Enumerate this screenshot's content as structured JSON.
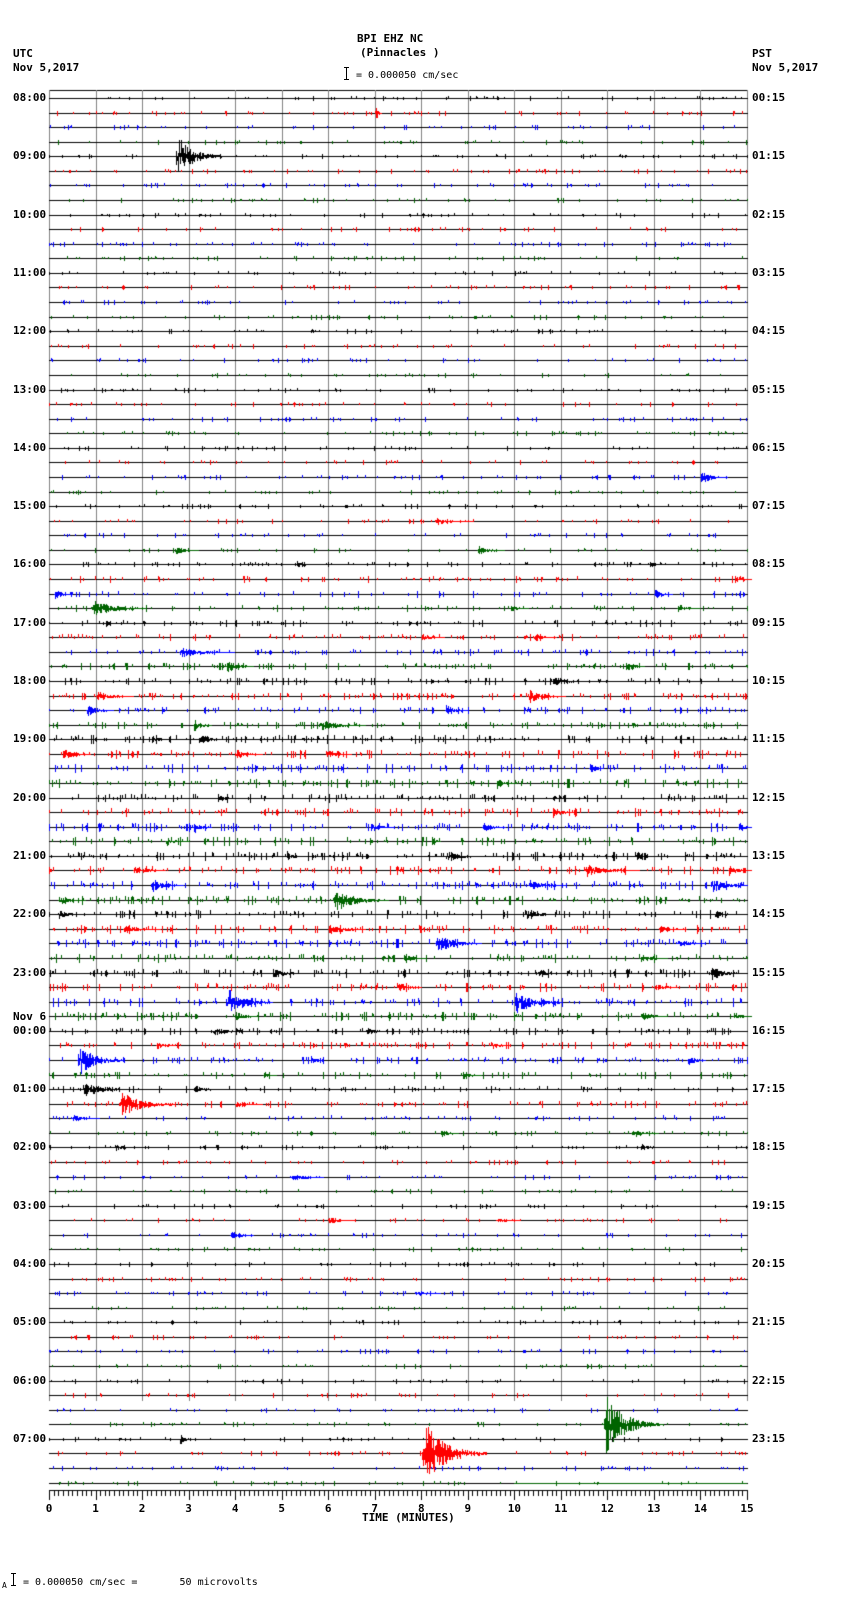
{
  "header": {
    "station": "BPI EHZ NC",
    "location": "(Pinnacles )",
    "scale_text": "= 0.000050 cm/sec",
    "left_tz": "UTC",
    "left_date": "Nov 5,2017",
    "right_tz": "PST",
    "right_date": "Nov 5,2017"
  },
  "footer": {
    "scale_text": "= 0.000050 cm/sec =       50 microvolts",
    "prefix": "A"
  },
  "chart_data": {
    "type": "line",
    "title": "BPI EHZ NC (Pinnacles ) helicorder",
    "xlabel": "TIME (MINUTES)",
    "ylabel": "",
    "xlim": [
      0,
      15
    ],
    "x_ticks": [
      "0",
      "1",
      "2",
      "3",
      "4",
      "5",
      "6",
      "7",
      "8",
      "9",
      "10",
      "11",
      "12",
      "13",
      "14",
      "15"
    ],
    "grid": true,
    "trace_colors": [
      "#000000",
      "#ff0000",
      "#0000ff",
      "#006400"
    ],
    "trace_count": 96,
    "minutes_per_trace": 15,
    "left_labels": [
      "08:00",
      "09:00",
      "10:00",
      "11:00",
      "12:00",
      "13:00",
      "14:00",
      "15:00",
      "16:00",
      "17:00",
      "18:00",
      "19:00",
      "20:00",
      "21:00",
      "22:00",
      "23:00",
      "00:00",
      "01:00",
      "02:00",
      "03:00",
      "04:00",
      "05:00",
      "06:00",
      "07:00"
    ],
    "date_change_label": "Nov 6",
    "date_change_index": 16,
    "right_labels": [
      "00:15",
      "01:15",
      "02:15",
      "03:15",
      "04:15",
      "05:15",
      "06:15",
      "07:15",
      "08:15",
      "09:15",
      "10:15",
      "11:15",
      "12:15",
      "13:15",
      "14:15",
      "15:15",
      "16:15",
      "17:15",
      "18:15",
      "19:15",
      "20:15",
      "21:15",
      "22:15",
      "23:15"
    ],
    "noise_levels": [
      1,
      1,
      1,
      1,
      1,
      1,
      1,
      1,
      1,
      1,
      1,
      1,
      1,
      1,
      1,
      1,
      1,
      1,
      1,
      1,
      1,
      1,
      1,
      1,
      1,
      1,
      1,
      1,
      1,
      1,
      1,
      1,
      1.3,
      1.5,
      1.5,
      1.5,
      1.6,
      1.8,
      1.8,
      2,
      2,
      2,
      2,
      2,
      2.2,
      2.4,
      2.4,
      2.4,
      2.4,
      2.4,
      2.4,
      2.4,
      2.4,
      2.4,
      2.4,
      2.4,
      2.4,
      2.4,
      2.4,
      2.4,
      2.4,
      2.4,
      2.4,
      2.4,
      2,
      2,
      2,
      2,
      1.6,
      1.6,
      1.4,
      1.2,
      1,
      1,
      1,
      1,
      1,
      1,
      1,
      1,
      1,
      1,
      1,
      1,
      1,
      1,
      1,
      1,
      1,
      1,
      1,
      1,
      1,
      1,
      1,
      1
    ],
    "events": [
      {
        "trace": 0,
        "minute": 9.6,
        "amp": 3,
        "dur": 0.2
      },
      {
        "trace": 1,
        "minute": 7.0,
        "amp": 10,
        "dur": 0.15
      },
      {
        "trace": 4,
        "minute": 2.7,
        "amp": 28,
        "dur": 1.0
      },
      {
        "trace": 16,
        "minute": 5.6,
        "amp": 3,
        "dur": 0.3
      },
      {
        "trace": 26,
        "minute": 14.0,
        "amp": 8,
        "dur": 0.6
      },
      {
        "trace": 29,
        "minute": 8.3,
        "amp": 4,
        "dur": 0.8
      },
      {
        "trace": 31,
        "minute": 2.7,
        "amp": 5,
        "dur": 0.5
      },
      {
        "trace": 31,
        "minute": 9.2,
        "amp": 5,
        "dur": 0.6
      },
      {
        "trace": 32,
        "minute": 5.3,
        "amp": 5,
        "dur": 0.3
      },
      {
        "trace": 32,
        "minute": 12.9,
        "amp": 4,
        "dur": 0.3
      },
      {
        "trace": 33,
        "minute": 14.8,
        "amp": 7,
        "dur": 0.3
      },
      {
        "trace": 34,
        "minute": 0.1,
        "amp": 8,
        "dur": 0.4
      },
      {
        "trace": 34,
        "minute": 13.0,
        "amp": 6,
        "dur": 0.4
      },
      {
        "trace": 35,
        "minute": 0.9,
        "amp": 10,
        "dur": 1.2
      },
      {
        "trace": 35,
        "minute": 9.9,
        "amp": 5,
        "dur": 0.4
      },
      {
        "trace": 35,
        "minute": 13.5,
        "amp": 5,
        "dur": 0.5
      },
      {
        "trace": 36,
        "minute": 1.2,
        "amp": 5,
        "dur": 0.2
      },
      {
        "trace": 37,
        "minute": 8.0,
        "amp": 5,
        "dur": 0.5
      },
      {
        "trace": 37,
        "minute": 10.4,
        "amp": 5,
        "dur": 0.5
      },
      {
        "trace": 38,
        "minute": 2.8,
        "amp": 6,
        "dur": 1.2
      },
      {
        "trace": 39,
        "minute": 3.8,
        "amp": 8,
        "dur": 0.6
      },
      {
        "trace": 39,
        "minute": 12.4,
        "amp": 8,
        "dur": 0.4
      },
      {
        "trace": 40,
        "minute": 10.8,
        "amp": 6,
        "dur": 0.8
      },
      {
        "trace": 41,
        "minute": 1.0,
        "amp": 6,
        "dur": 0.8
      },
      {
        "trace": 41,
        "minute": 10.3,
        "amp": 10,
        "dur": 0.8
      },
      {
        "trace": 42,
        "minute": 0.8,
        "amp": 7,
        "dur": 0.6
      },
      {
        "trace": 42,
        "minute": 8.5,
        "amp": 7,
        "dur": 0.5
      },
      {
        "trace": 43,
        "minute": 3.1,
        "amp": 9,
        "dur": 0.4
      },
      {
        "trace": 43,
        "minute": 5.8,
        "amp": 7,
        "dur": 1.0
      },
      {
        "trace": 44,
        "minute": 3.2,
        "amp": 8,
        "dur": 0.6
      },
      {
        "trace": 44,
        "minute": 2.2,
        "amp": 5,
        "dur": 0.4
      },
      {
        "trace": 45,
        "minute": 0.3,
        "amp": 6,
        "dur": 0.6
      },
      {
        "trace": 45,
        "minute": 4.0,
        "amp": 6,
        "dur": 0.6
      },
      {
        "trace": 45,
        "minute": 6.0,
        "amp": 5,
        "dur": 0.5
      },
      {
        "trace": 46,
        "minute": 11.6,
        "amp": 6,
        "dur": 0.3
      },
      {
        "trace": 47,
        "minute": 9.6,
        "amp": 6,
        "dur": 0.4
      },
      {
        "trace": 48,
        "minute": 3.6,
        "amp": 4,
        "dur": 0.5
      },
      {
        "trace": 49,
        "minute": 10.8,
        "amp": 8,
        "dur": 0.5
      },
      {
        "trace": 50,
        "minute": 3.1,
        "amp": 7,
        "dur": 0.4
      },
      {
        "trace": 50,
        "minute": 6.9,
        "amp": 6,
        "dur": 0.5
      },
      {
        "trace": 50,
        "minute": 9.3,
        "amp": 6,
        "dur": 0.5
      },
      {
        "trace": 50,
        "minute": 14.8,
        "amp": 7,
        "dur": 0.3
      },
      {
        "trace": 51,
        "minute": 8.2,
        "amp": 9,
        "dur": 0.2
      },
      {
        "trace": 51,
        "minute": 2.5,
        "amp": 5,
        "dur": 0.5
      },
      {
        "trace": 52,
        "minute": 5.1,
        "amp": 7,
        "dur": 0.3
      },
      {
        "trace": 52,
        "minute": 8.5,
        "amp": 6,
        "dur": 0.8
      },
      {
        "trace": 52,
        "minute": 12.6,
        "amp": 8,
        "dur": 0.4
      },
      {
        "trace": 53,
        "minute": 1.8,
        "amp": 6,
        "dur": 0.7
      },
      {
        "trace": 53,
        "minute": 11.5,
        "amp": 7,
        "dur": 1.2
      },
      {
        "trace": 53,
        "minute": 14.6,
        "amp": 7,
        "dur": 0.5
      },
      {
        "trace": 54,
        "minute": 2.2,
        "amp": 8,
        "dur": 0.7
      },
      {
        "trace": 54,
        "minute": 10.3,
        "amp": 6,
        "dur": 0.8
      },
      {
        "trace": 54,
        "minute": 14.2,
        "amp": 9,
        "dur": 0.8
      },
      {
        "trace": 55,
        "minute": 6.1,
        "amp": 13,
        "dur": 1.2
      },
      {
        "trace": 55,
        "minute": 0.2,
        "amp": 5,
        "dur": 0.6
      },
      {
        "trace": 56,
        "minute": 0.2,
        "amp": 5,
        "dur": 0.5
      },
      {
        "trace": 56,
        "minute": 10.2,
        "amp": 7,
        "dur": 0.7
      },
      {
        "trace": 56,
        "minute": 14.3,
        "amp": 6,
        "dur": 0.5
      },
      {
        "trace": 57,
        "minute": 6.0,
        "amp": 6,
        "dur": 0.8
      },
      {
        "trace": 57,
        "minute": 1.6,
        "amp": 5,
        "dur": 0.8
      },
      {
        "trace": 57,
        "minute": 13.1,
        "amp": 5,
        "dur": 0.6
      },
      {
        "trace": 58,
        "minute": 8.3,
        "amp": 12,
        "dur": 1.0
      },
      {
        "trace": 58,
        "minute": 13.5,
        "amp": 5,
        "dur": 0.6
      },
      {
        "trace": 59,
        "minute": 7.6,
        "amp": 6,
        "dur": 0.5
      },
      {
        "trace": 59,
        "minute": 12.7,
        "amp": 5,
        "dur": 0.6
      },
      {
        "trace": 60,
        "minute": 4.8,
        "amp": 7,
        "dur": 0.6
      },
      {
        "trace": 60,
        "minute": 10.5,
        "amp": 6,
        "dur": 0.5
      },
      {
        "trace": 60,
        "minute": 14.2,
        "amp": 8,
        "dur": 0.8
      },
      {
        "trace": 61,
        "minute": 7.5,
        "amp": 6,
        "dur": 0.5
      },
      {
        "trace": 61,
        "minute": 13.0,
        "amp": 5,
        "dur": 0.5
      },
      {
        "trace": 62,
        "minute": 3.8,
        "amp": 16,
        "dur": 1.0
      },
      {
        "trace": 62,
        "minute": 10.0,
        "amp": 14,
        "dur": 1.0
      },
      {
        "trace": 62,
        "minute": 10.8,
        "amp": 8,
        "dur": 0.2
      },
      {
        "trace": 63,
        "minute": 4.0,
        "amp": 6,
        "dur": 0.5
      },
      {
        "trace": 63,
        "minute": 12.7,
        "amp": 6,
        "dur": 0.6
      },
      {
        "trace": 63,
        "minute": 14.7,
        "amp": 5,
        "dur": 0.4
      },
      {
        "trace": 64,
        "minute": 6.8,
        "amp": 5,
        "dur": 0.5
      },
      {
        "trace": 64,
        "minute": 3.5,
        "amp": 4,
        "dur": 1.0
      },
      {
        "trace": 65,
        "minute": 2.3,
        "amp": 5,
        "dur": 0.4
      },
      {
        "trace": 65,
        "minute": 9.5,
        "amp": 5,
        "dur": 0.4
      },
      {
        "trace": 66,
        "minute": 0.6,
        "amp": 18,
        "dur": 1.0
      },
      {
        "trace": 66,
        "minute": 5.6,
        "amp": 7,
        "dur": 0.3
      },
      {
        "trace": 66,
        "minute": 13.7,
        "amp": 7,
        "dur": 0.4
      },
      {
        "trace": 67,
        "minute": 8.9,
        "amp": 5,
        "dur": 0.4
      },
      {
        "trace": 67,
        "minute": 4.6,
        "amp": 4,
        "dur": 0.3
      },
      {
        "trace": 68,
        "minute": 0.7,
        "amp": 10,
        "dur": 1.0
      },
      {
        "trace": 68,
        "minute": 3.1,
        "amp": 5,
        "dur": 0.6
      },
      {
        "trace": 69,
        "minute": 1.5,
        "amp": 16,
        "dur": 1.2
      },
      {
        "trace": 69,
        "minute": 4.0,
        "amp": 4,
        "dur": 0.6
      },
      {
        "trace": 70,
        "minute": 0.5,
        "amp": 4,
        "dur": 0.6
      },
      {
        "trace": 71,
        "minute": 8.4,
        "amp": 5,
        "dur": 0.4
      },
      {
        "trace": 71,
        "minute": 12.5,
        "amp": 5,
        "dur": 0.6
      },
      {
        "trace": 72,
        "minute": 1.4,
        "amp": 4,
        "dur": 0.5
      },
      {
        "trace": 72,
        "minute": 12.7,
        "amp": 5,
        "dur": 0.5
      },
      {
        "trace": 74,
        "minute": 5.2,
        "amp": 4,
        "dur": 0.7
      },
      {
        "trace": 77,
        "minute": 6.0,
        "amp": 4,
        "dur": 0.6
      },
      {
        "trace": 77,
        "minute": 9.6,
        "amp": 3,
        "dur": 0.5
      },
      {
        "trace": 78,
        "minute": 3.9,
        "amp": 6,
        "dur": 0.5
      },
      {
        "trace": 82,
        "minute": 7.9,
        "amp": 4,
        "dur": 0.5
      },
      {
        "trace": 91,
        "minute": 11.9,
        "amp": 34,
        "dur": 1.3
      },
      {
        "trace": 92,
        "minute": 2.8,
        "amp": 7,
        "dur": 0.3
      },
      {
        "trace": 93,
        "minute": 8.0,
        "amp": 38,
        "dur": 1.4
      },
      {
        "trace": 95,
        "minute": 10.0,
        "amp": 0.5,
        "dur": 5.0
      }
    ]
  }
}
